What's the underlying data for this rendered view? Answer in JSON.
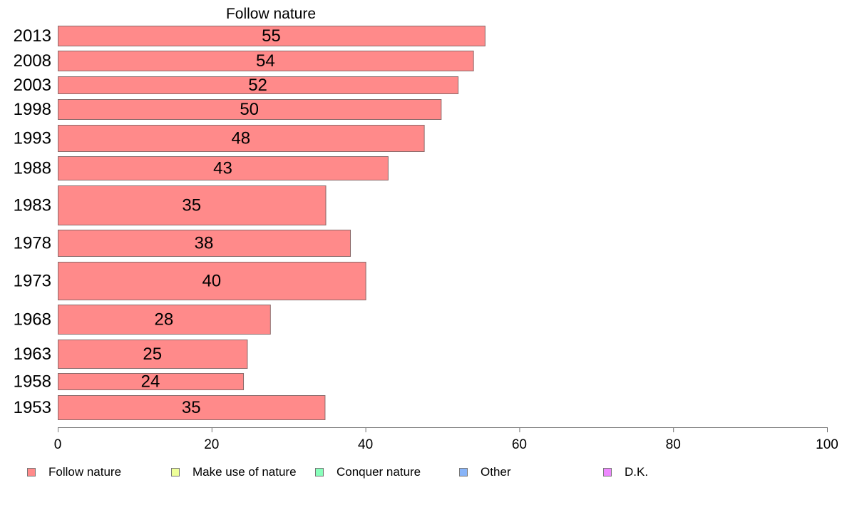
{
  "chart_data": {
    "type": "bar",
    "orientation": "horizontal",
    "title": "Follow nature",
    "categories": [
      "2013",
      "2008",
      "2003",
      "1998",
      "1993",
      "1988",
      "1983",
      "1978",
      "1973",
      "1968",
      "1963",
      "1958",
      "1953"
    ],
    "series": [
      {
        "name": "Follow nature",
        "color": "#ff8a8a",
        "values": [
          55.5,
          54,
          52,
          49.8,
          47.6,
          42.9,
          34.8,
          38,
          40,
          27.6,
          24.6,
          24.1,
          34.7
        ],
        "labels": [
          "55",
          "54",
          "52",
          "50",
          "48",
          "43",
          "35",
          "38",
          "40",
          "28",
          "25",
          "24",
          "35"
        ]
      }
    ],
    "xlim": [
      0,
      100
    ],
    "xticks": [
      "0",
      "20",
      "40",
      "60",
      "80",
      "100"
    ],
    "grid": false,
    "legend": {
      "placement": "bottom",
      "items": [
        {
          "label": "Follow nature",
          "color": "#ff8a8a"
        },
        {
          "label": "Make use of nature",
          "color": "#eeff99"
        },
        {
          "label": "Conquer nature",
          "color": "#88ffbb"
        },
        {
          "label": "Other",
          "color": "#88b4f8"
        },
        {
          "label": "D.K.",
          "color": "#ee88ff"
        }
      ]
    }
  }
}
